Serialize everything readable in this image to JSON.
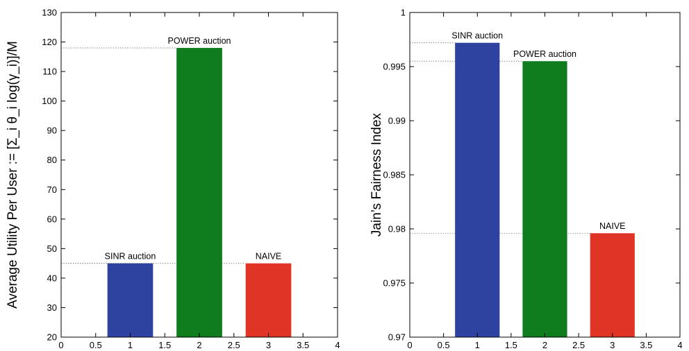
{
  "chart_data": [
    {
      "type": "bar",
      "ylabel": "Average Utility Per User := [Σ_i θ_i log(γ_i)]/M",
      "xlim": [
        0,
        4
      ],
      "ylim": [
        20,
        130
      ],
      "xticks": [
        0,
        0.5,
        1,
        1.5,
        2,
        2.5,
        3,
        3.5,
        4
      ],
      "xtick_labels": [
        "0",
        "0.5",
        "1",
        "1.5",
        "2",
        "2.5",
        "3",
        "3.5",
        "4"
      ],
      "yticks": [
        20,
        30,
        40,
        50,
        60,
        70,
        80,
        90,
        100,
        110,
        120,
        130
      ],
      "ytick_labels": [
        "20",
        "30",
        "40",
        "50",
        "60",
        "70",
        "80",
        "90",
        "100",
        "110",
        "120",
        "130"
      ],
      "grid": false,
      "bars": [
        {
          "x": 1,
          "value": 45.0,
          "label": "SINR auction",
          "color": "#2e43a0"
        },
        {
          "x": 2,
          "value": 118.0,
          "label": "POWER auction",
          "color": "#0f7d1e"
        },
        {
          "x": 3,
          "value": 45.0,
          "label": "NAIVE",
          "color": "#e03426"
        }
      ]
    },
    {
      "type": "bar",
      "ylabel": "Jain’s Fairness Index",
      "xlim": [
        0,
        4
      ],
      "ylim": [
        0.97,
        1.0
      ],
      "xticks": [
        0,
        0.5,
        1,
        1.5,
        2,
        2.5,
        3,
        3.5,
        4
      ],
      "xtick_labels": [
        "0",
        "0.5",
        "1",
        "1.5",
        "2",
        "2.5",
        "3",
        "3.5",
        "4"
      ],
      "yticks": [
        0.97,
        0.975,
        0.98,
        0.985,
        0.99,
        0.995,
        1.0
      ],
      "ytick_labels": [
        "0.97",
        "0.975",
        "0.98",
        "0.985",
        "0.99",
        "0.995",
        "1"
      ],
      "grid": false,
      "bars": [
        {
          "x": 1,
          "value": 0.9972,
          "label": "SINR auction",
          "color": "#2e43a0"
        },
        {
          "x": 2,
          "value": 0.9955,
          "label": "POWER auction",
          "color": "#0f7d1e"
        },
        {
          "x": 3,
          "value": 0.9796,
          "label": "NAIVE",
          "color": "#e03426"
        }
      ]
    }
  ]
}
